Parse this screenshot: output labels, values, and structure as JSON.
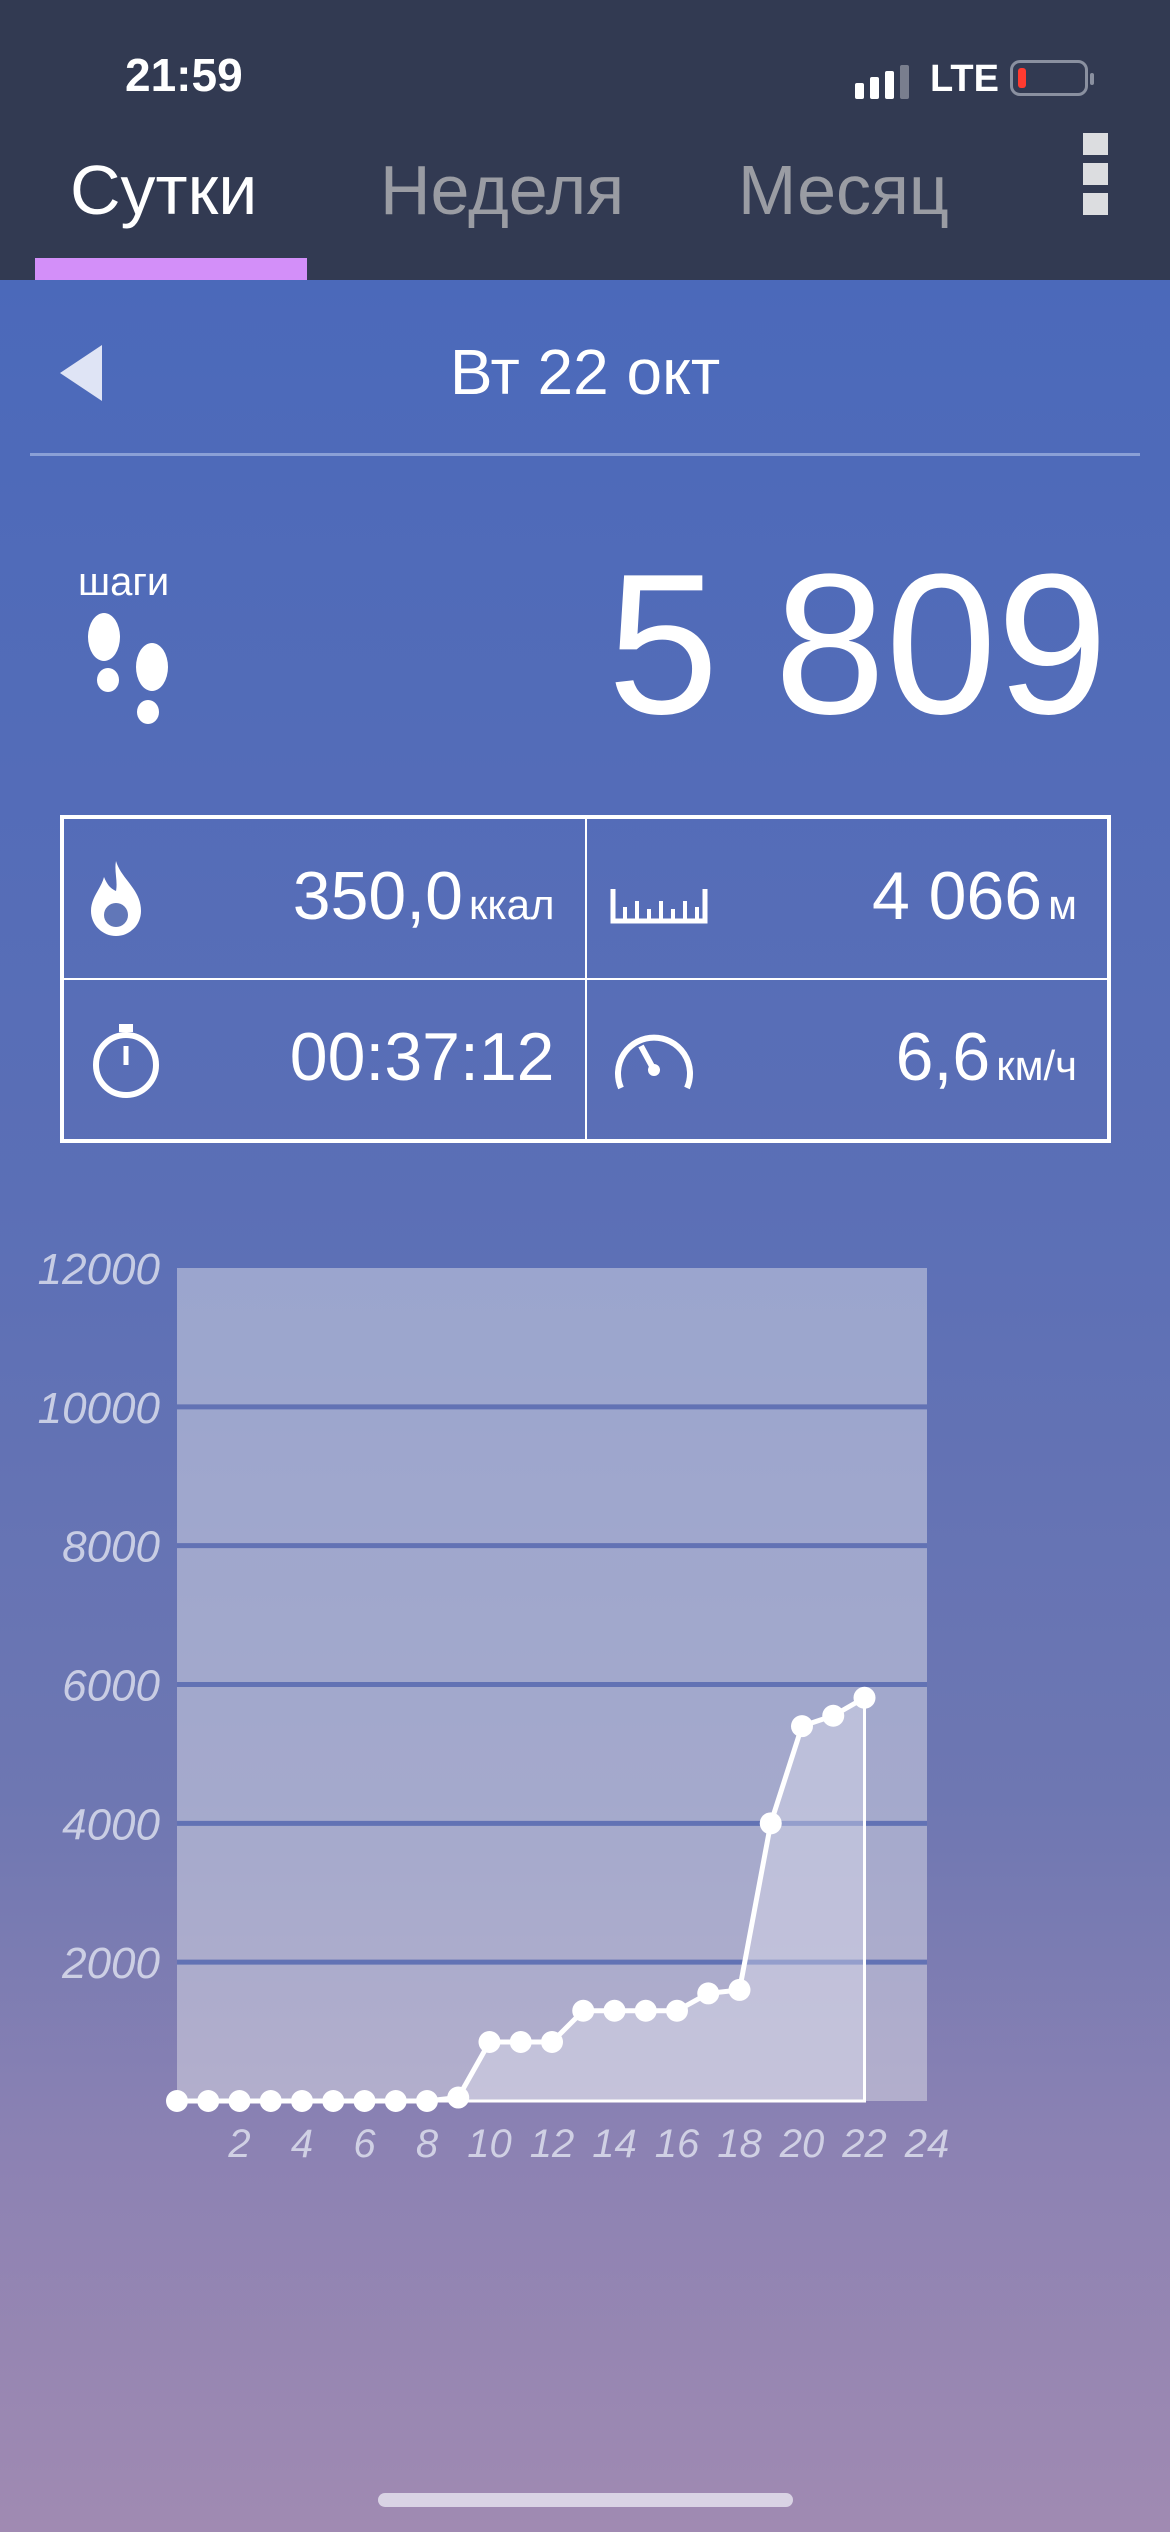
{
  "status_bar": {
    "time": "21:59",
    "network": "LTE",
    "battery_level": "low",
    "battery_color": "#ff3b30"
  },
  "tabs": [
    {
      "label": "Сутки",
      "active": true
    },
    {
      "label": "Неделя",
      "active": false
    },
    {
      "label": "Месяц",
      "active": false
    }
  ],
  "accent": "#d38ff9",
  "date_nav": {
    "date": "Вт 22 окт",
    "back_icon": "triangle-left"
  },
  "steps": {
    "label": "шаги",
    "value": "5 809",
    "icon": "footprints"
  },
  "stats": [
    {
      "icon": "flame",
      "value": "350,0",
      "unit": "ккал"
    },
    {
      "icon": "ruler",
      "value": "4 066",
      "unit": "м"
    },
    {
      "icon": "stopwatch",
      "value": "00:37:12",
      "unit": ""
    },
    {
      "icon": "speedometer",
      "value": "6,6",
      "unit": "км/ч"
    }
  ],
  "chart_data": {
    "type": "line",
    "x": [
      0,
      1,
      2,
      3,
      4,
      5,
      6,
      7,
      8,
      9,
      10,
      11,
      12,
      13,
      14,
      15,
      16,
      17,
      18,
      19,
      20,
      21,
      22
    ],
    "values": [
      0,
      0,
      0,
      0,
      0,
      0,
      0,
      0,
      0,
      50,
      850,
      850,
      850,
      1300,
      1300,
      1300,
      1300,
      1550,
      1600,
      4000,
      5400,
      5550,
      5809
    ],
    "xlim": [
      0,
      24
    ],
    "ylim": [
      0,
      12000
    ],
    "xticks": [
      "2",
      "4",
      "6",
      "8",
      "10",
      "12",
      "14",
      "16",
      "18",
      "20",
      "22",
      "24"
    ],
    "yticks": [
      "2000",
      "4000",
      "6000",
      "8000",
      "10000",
      "12000"
    ],
    "grid": true
  }
}
